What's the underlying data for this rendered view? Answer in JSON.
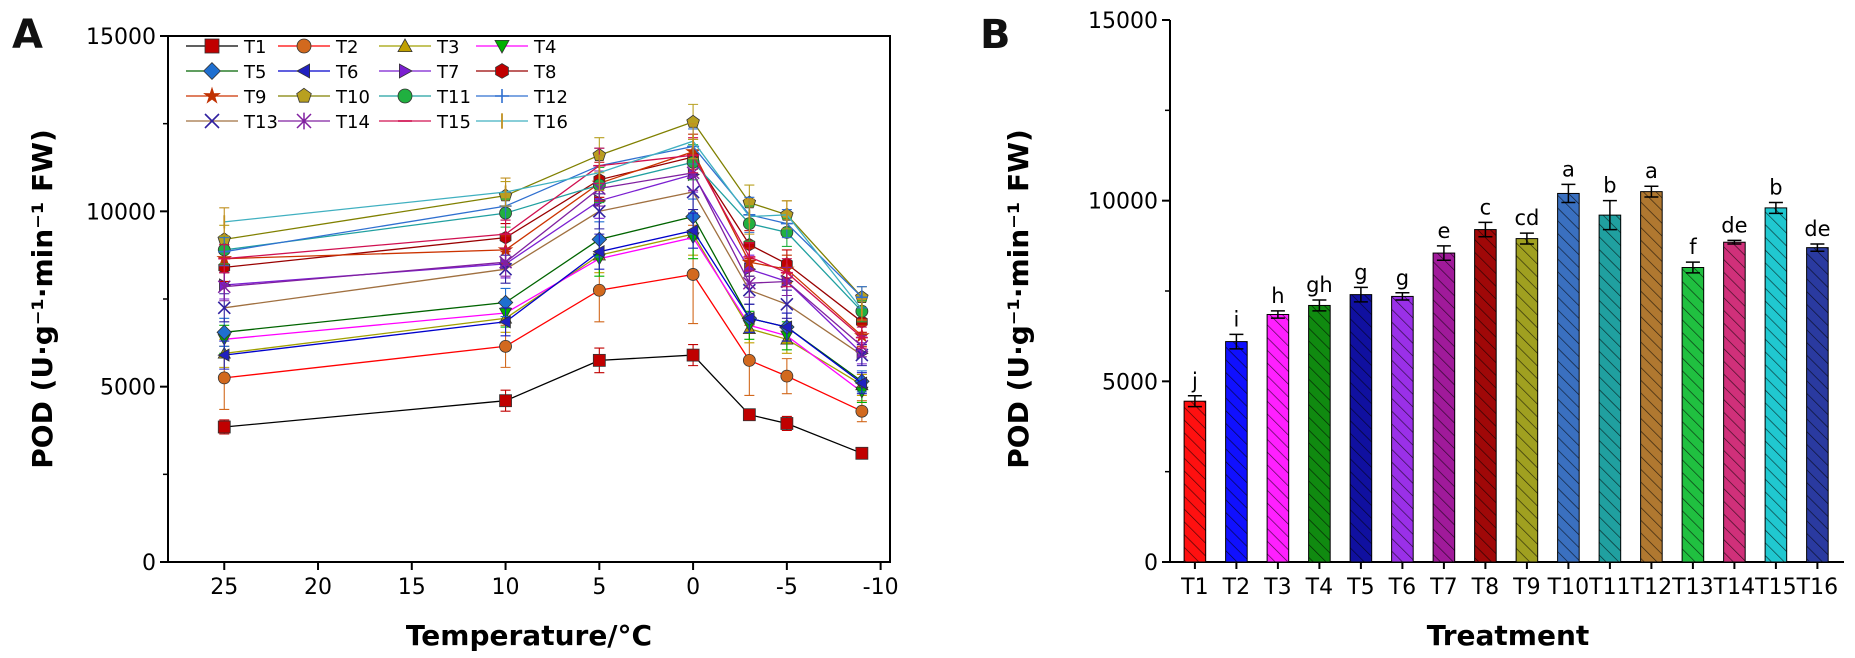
{
  "chart_data": [
    {
      "panel": "A",
      "type": "line",
      "xlabel": "Temperature/°C",
      "ylabel": "POD (U·g⁻¹·min⁻¹ FW)",
      "x": [
        25,
        10,
        5,
        0,
        -3,
        -5,
        -9
      ],
      "xticks": [
        25,
        20,
        15,
        10,
        5,
        0,
        -5,
        -10
      ],
      "xlim": [
        28,
        -10.5
      ],
      "yticks": [
        0,
        5000,
        10000,
        15000
      ],
      "ylim": [
        0,
        15000
      ],
      "series": [
        {
          "name": "T1",
          "marker": "square",
          "color": "#c00000",
          "line": "#000000",
          "values": [
            3850,
            4600,
            5750,
            5900,
            4200,
            3950,
            3100
          ],
          "err": [
            200,
            300,
            350,
            300,
            150,
            200,
            100
          ]
        },
        {
          "name": "T2",
          "marker": "circle",
          "color": "#d2691e",
          "line": "#ff0000",
          "values": [
            5250,
            6150,
            7750,
            8200,
            5750,
            5300,
            4300
          ],
          "err": [
            900,
            600,
            900,
            1400,
            1000,
            500,
            300
          ]
        },
        {
          "name": "T3",
          "marker": "triangle-up",
          "color": "#c0a000",
          "line": "#a0a000",
          "values": [
            5950,
            6950,
            8750,
            9350,
            6650,
            6350,
            5050
          ],
          "err": [
            400,
            400,
            500,
            600,
            400,
            400,
            300
          ]
        },
        {
          "name": "T4",
          "marker": "triangle-down",
          "color": "#00b000",
          "line": "#ff00ff",
          "values": [
            6350,
            7100,
            8650,
            9250,
            6750,
            6450,
            4850
          ],
          "err": [
            400,
            400,
            500,
            600,
            400,
            400,
            300
          ]
        },
        {
          "name": "T5",
          "marker": "diamond",
          "color": "#1f6fd0",
          "line": "#006400",
          "values": [
            6550,
            7400,
            9200,
            9850,
            6950,
            6700,
            5150
          ],
          "err": [
            400,
            400,
            500,
            500,
            400,
            400,
            300
          ]
        },
        {
          "name": "T6",
          "marker": "triangle-left",
          "color": "#2020c0",
          "line": "#0000cc",
          "values": [
            5900,
            6850,
            8850,
            9450,
            6950,
            6700,
            5100
          ],
          "err": [
            400,
            400,
            500,
            500,
            400,
            400,
            300
          ]
        },
        {
          "name": "T7",
          "marker": "triangle-right",
          "color": "#7b1fd1",
          "line": "#7b1fd1",
          "values": [
            7900,
            8500,
            10300,
            11050,
            8350,
            8000,
            5950
          ],
          "err": [
            400,
            400,
            500,
            500,
            400,
            400,
            300
          ]
        },
        {
          "name": "T8",
          "marker": "hexagon",
          "color": "#c00000",
          "line": "#990000",
          "values": [
            8400,
            9250,
            10900,
            11550,
            9050,
            8500,
            6850
          ],
          "err": [
            400,
            400,
            500,
            500,
            400,
            400,
            300
          ]
        },
        {
          "name": "T9",
          "marker": "star",
          "color": "#c03000",
          "line": "#cc3300",
          "values": [
            8650,
            8900,
            10800,
            11700,
            8550,
            8350,
            6450
          ],
          "err": [
            400,
            400,
            500,
            500,
            400,
            400,
            300
          ]
        },
        {
          "name": "T10",
          "marker": "pentagon",
          "color": "#b8a020",
          "line": "#808000",
          "values": [
            9200,
            10450,
            11600,
            12550,
            10250,
            9900,
            7550
          ],
          "err": [
            400,
            400,
            500,
            500,
            500,
            400,
            300
          ]
        },
        {
          "name": "T11",
          "marker": "circle",
          "color": "#20b040",
          "line": "#20a0a0",
          "values": [
            8900,
            9950,
            10750,
            11400,
            9650,
            9400,
            7150
          ],
          "err": [
            400,
            400,
            500,
            500,
            500,
            400,
            300
          ]
        },
        {
          "name": "T12",
          "marker": "plus",
          "color": "#3070d0",
          "line": "#3070d0",
          "values": [
            8850,
            10150,
            11300,
            11850,
            9900,
            9650,
            7550
          ],
          "err": [
            400,
            400,
            500,
            500,
            500,
            400,
            300
          ]
        },
        {
          "name": "T13",
          "marker": "x",
          "color": "#3020a0",
          "line": "#a07040",
          "values": [
            7250,
            8350,
            10000,
            10550,
            7750,
            7350,
            5900
          ],
          "err": [
            400,
            400,
            500,
            500,
            400,
            400,
            300
          ]
        },
        {
          "name": "T14",
          "marker": "asterisk",
          "color": "#8020a0",
          "line": "#8020a0",
          "values": [
            7850,
            8550,
            10650,
            11100,
            7950,
            8000,
            6150
          ],
          "err": [
            400,
            400,
            500,
            500,
            400,
            400,
            300
          ]
        },
        {
          "name": "T15",
          "marker": "dash",
          "color": "#d01050",
          "line": "#d01050",
          "values": [
            8650,
            9350,
            11300,
            11600,
            8700,
            8250,
            6400
          ],
          "err": [
            400,
            400,
            500,
            500,
            400,
            400,
            300
          ]
        },
        {
          "name": "T16",
          "marker": "vbar",
          "color": "#c09020",
          "line": "#40b0c0",
          "values": [
            9700,
            10550,
            11100,
            12000,
            9850,
            9900,
            7200
          ],
          "err": [
            400,
            400,
            500,
            500,
            500,
            400,
            300
          ]
        }
      ]
    },
    {
      "panel": "B",
      "type": "bar",
      "xlabel": "Treatment",
      "ylabel": "POD (U·g⁻¹·min⁻¹ FW)",
      "categories": [
        "T1",
        "T2",
        "T3",
        "T4",
        "T5",
        "T6",
        "T7",
        "T8",
        "T9",
        "T10",
        "T11",
        "T12",
        "T13",
        "T14",
        "T15",
        "T16"
      ],
      "values": [
        4450,
        6100,
        6850,
        7100,
        7400,
        7350,
        8550,
        9200,
        8950,
        10200,
        9600,
        10250,
        8150,
        8850,
        9800,
        8700
      ],
      "errors": [
        150,
        200,
        100,
        150,
        200,
        100,
        200,
        200,
        150,
        250,
        400,
        150,
        150,
        50,
        150,
        100
      ],
      "letters": [
        "j",
        "i",
        "h",
        "gh",
        "g",
        "g",
        "e",
        "c",
        "cd",
        "a",
        "b",
        "a",
        "f",
        "de",
        "b",
        "de"
      ],
      "colors": [
        "#ff1010",
        "#1010ff",
        "#ff20ff",
        "#108a10",
        "#1010a0",
        "#9a30e8",
        "#a01a9a",
        "#a00808",
        "#a0a020",
        "#3a70c0",
        "#20a0a0",
        "#b07830",
        "#20c040",
        "#d0307a",
        "#20c8d0",
        "#2a3aa0"
      ],
      "yticks": [
        0,
        5000,
        10000,
        15000
      ],
      "ylim": [
        0,
        15000
      ]
    }
  ]
}
